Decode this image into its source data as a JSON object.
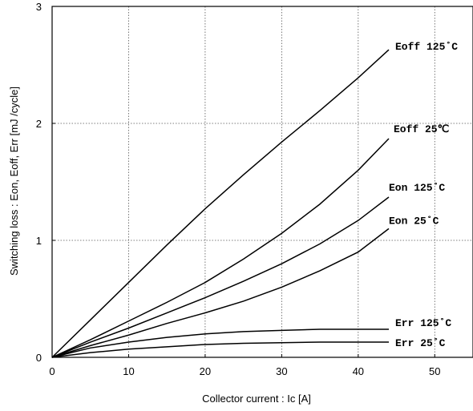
{
  "chart_data": {
    "type": "line",
    "xlabel": "Collector current : Ic [A]",
    "ylabel": "Switching loss : Eon, Eoff, Err [mJ /cycle]",
    "xlim": [
      0,
      55
    ],
    "ylim": [
      0,
      3
    ],
    "x_ticks": [
      "0",
      "10",
      "20",
      "30",
      "40",
      "50"
    ],
    "y_ticks": [
      "0",
      "1",
      "2",
      "3"
    ],
    "grid": true,
    "series": [
      {
        "name": "Eoff 125˚C",
        "color": "#000000",
        "x": [
          0,
          5,
          10,
          15,
          20,
          25,
          30,
          35,
          40,
          44
        ],
        "y": [
          0,
          0.32,
          0.64,
          0.96,
          1.27,
          1.56,
          1.84,
          2.11,
          2.39,
          2.63
        ]
      },
      {
        "name": "Eoff 25℃",
        "color": "#000000",
        "x": [
          0,
          5,
          10,
          15,
          20,
          25,
          30,
          35,
          40,
          44
        ],
        "y": [
          0,
          0.15,
          0.31,
          0.47,
          0.64,
          0.84,
          1.06,
          1.31,
          1.6,
          1.87
        ]
      },
      {
        "name": "Eon 125˚C",
        "color": "#000000",
        "x": [
          0,
          5,
          10,
          15,
          20,
          25,
          30,
          35,
          40,
          44
        ],
        "y": [
          0,
          0.13,
          0.25,
          0.38,
          0.51,
          0.65,
          0.8,
          0.97,
          1.17,
          1.37
        ]
      },
      {
        "name": "Eon 25˚C",
        "color": "#000000",
        "x": [
          0,
          5,
          10,
          15,
          20,
          25,
          30,
          35,
          40,
          44
        ],
        "y": [
          0,
          0.1,
          0.19,
          0.29,
          0.38,
          0.48,
          0.6,
          0.74,
          0.9,
          1.1
        ]
      },
      {
        "name": "Err 125˚C",
        "color": "#000000",
        "x": [
          0,
          5,
          10,
          15,
          20,
          25,
          30,
          35,
          40,
          44
        ],
        "y": [
          0,
          0.08,
          0.13,
          0.17,
          0.2,
          0.22,
          0.23,
          0.24,
          0.24,
          0.24
        ]
      },
      {
        "name": "Err 25˚C",
        "color": "#000000",
        "x": [
          0,
          5,
          10,
          15,
          20,
          25,
          30,
          35,
          40,
          44
        ],
        "y": [
          0,
          0.04,
          0.07,
          0.09,
          0.11,
          0.12,
          0.125,
          0.13,
          0.13,
          0.13
        ]
      }
    ]
  }
}
